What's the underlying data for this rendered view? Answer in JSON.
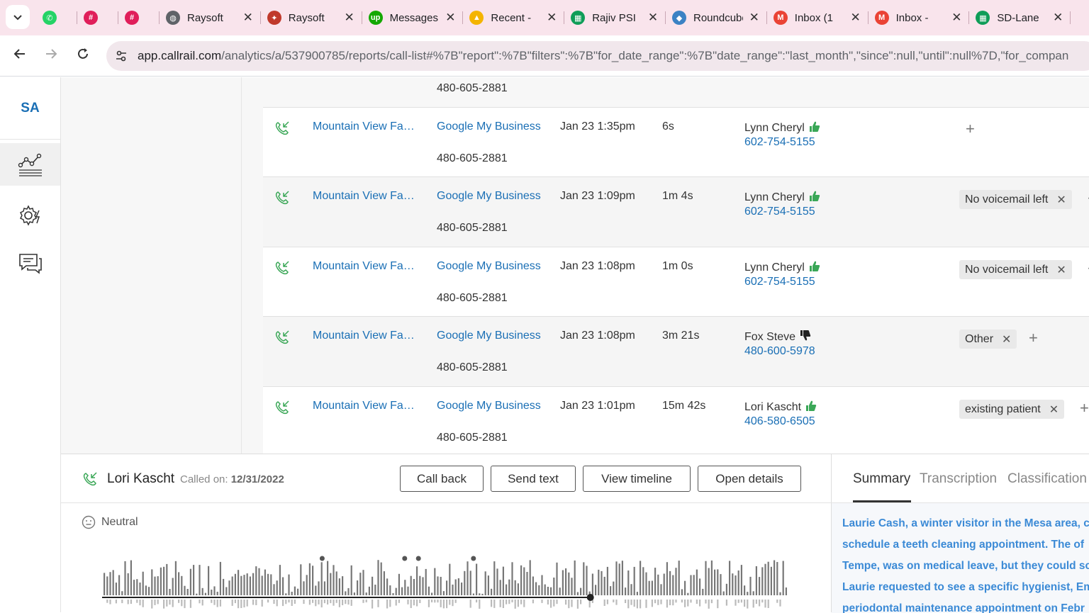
{
  "browser": {
    "tabs": [
      {
        "label": "",
        "icon": "whatsapp-icon",
        "color": "#25d366"
      },
      {
        "label": "",
        "icon": "slack-icon",
        "color": "#e01e5a"
      },
      {
        "label": "",
        "icon": "slack-icon",
        "color": "#e01e5a"
      },
      {
        "label": "Raysoft",
        "icon": "globe-icon",
        "color": "#5f6368"
      },
      {
        "label": "Raysoft",
        "icon": "raysoft-icon",
        "color": "#c0392b"
      },
      {
        "label": "Messages",
        "icon": "upwork-icon",
        "color": "#14a800"
      },
      {
        "label": "Recent - ",
        "icon": "drive-icon",
        "color": "#f4b400"
      },
      {
        "label": "Rajiv PSI",
        "icon": "sheets-icon",
        "color": "#0f9d58"
      },
      {
        "label": "Roundcube",
        "icon": "roundcube-icon",
        "color": "#3b82c4"
      },
      {
        "label": "Inbox (1",
        "icon": "gmail-icon",
        "color": "#ea4335"
      },
      {
        "label": "Inbox - ",
        "icon": "gmail-icon",
        "color": "#ea4335"
      },
      {
        "label": "SD-Lane",
        "icon": "sheets-icon",
        "color": "#0f9d58"
      }
    ],
    "url_host": "app.callrail.com",
    "url_path": "/analytics/a/537900785/reports/call-list#%7B\"report\":%7B\"filters\":%7B\"for_date_range\":%7B\"date_range\":\"last_month\",\"since\":null,\"until\":null%7D,\"for_compan"
  },
  "nav": {
    "account_initials": "SA",
    "items": [
      "analytics-icon",
      "settings-gear-icon",
      "conversations-icon"
    ]
  },
  "table": {
    "partial_top_number": "480-605-2881",
    "rows": [
      {
        "company": "Mountain View Fa…",
        "source": "Google My Business",
        "tracking": "480-605-2881",
        "start": "Jan 23 1:35pm",
        "duration": "6s",
        "customer": "Lynn Cheryl",
        "phone": "602-754-5155",
        "thumb": "up",
        "tags": []
      },
      {
        "company": "Mountain View Fa…",
        "source": "Google My Business",
        "tracking": "480-605-2881",
        "start": "Jan 23 1:09pm",
        "duration": "1m 4s",
        "customer": "Lynn Cheryl",
        "phone": "602-754-5155",
        "thumb": "up",
        "tags": [
          "No voicemail left"
        ]
      },
      {
        "company": "Mountain View Fa…",
        "source": "Google My Business",
        "tracking": "480-605-2881",
        "start": "Jan 23 1:08pm",
        "duration": "1m 0s",
        "customer": "Lynn Cheryl",
        "phone": "602-754-5155",
        "thumb": "up",
        "tags": [
          "No voicemail left"
        ]
      },
      {
        "company": "Mountain View Fa…",
        "source": "Google My Business",
        "tracking": "480-605-2881",
        "start": "Jan 23 1:08pm",
        "duration": "3m 21s",
        "customer": "Fox Steve",
        "phone": "480-600-5978",
        "thumb": "down",
        "tags": [
          "Other"
        ]
      },
      {
        "company": "Mountain View Fa…",
        "source": "Google My Business",
        "tracking": "480-605-2881",
        "start": "Jan 23 1:01pm",
        "duration": "15m 42s",
        "customer": "Lori Kascht",
        "phone": "406-580-6505",
        "thumb": "up",
        "tags": [
          "existing patient"
        ]
      }
    ]
  },
  "call_panel": {
    "caller": "Lori Kascht",
    "called_on_label": "Called on:",
    "called_on_date": "12/31/2022",
    "buttons": {
      "call_back": "Call back",
      "send_text": "Send text",
      "view_timeline": "View timeline",
      "open_details": "Open details"
    },
    "sentiment": "Neutral",
    "playback_progress": 0.71
  },
  "summary_panel": {
    "tabs": [
      "Summary",
      "Transcription",
      "Classification"
    ],
    "active_tab": "Summary",
    "lines": [
      "Laurie Cash, a winter visitor in the Mesa area, c",
      "schedule a teeth cleaning appointment. The of",
      "Tempe, was on medical leave, but they could sc",
      "Laurie requested to see a specific hygienist, Em",
      "periodontal maintenance appointment on Febr"
    ]
  },
  "colors": {
    "link": "#1a6fb5",
    "thumb_up": "#3aa757",
    "summary_text": "#3b8ad6"
  }
}
